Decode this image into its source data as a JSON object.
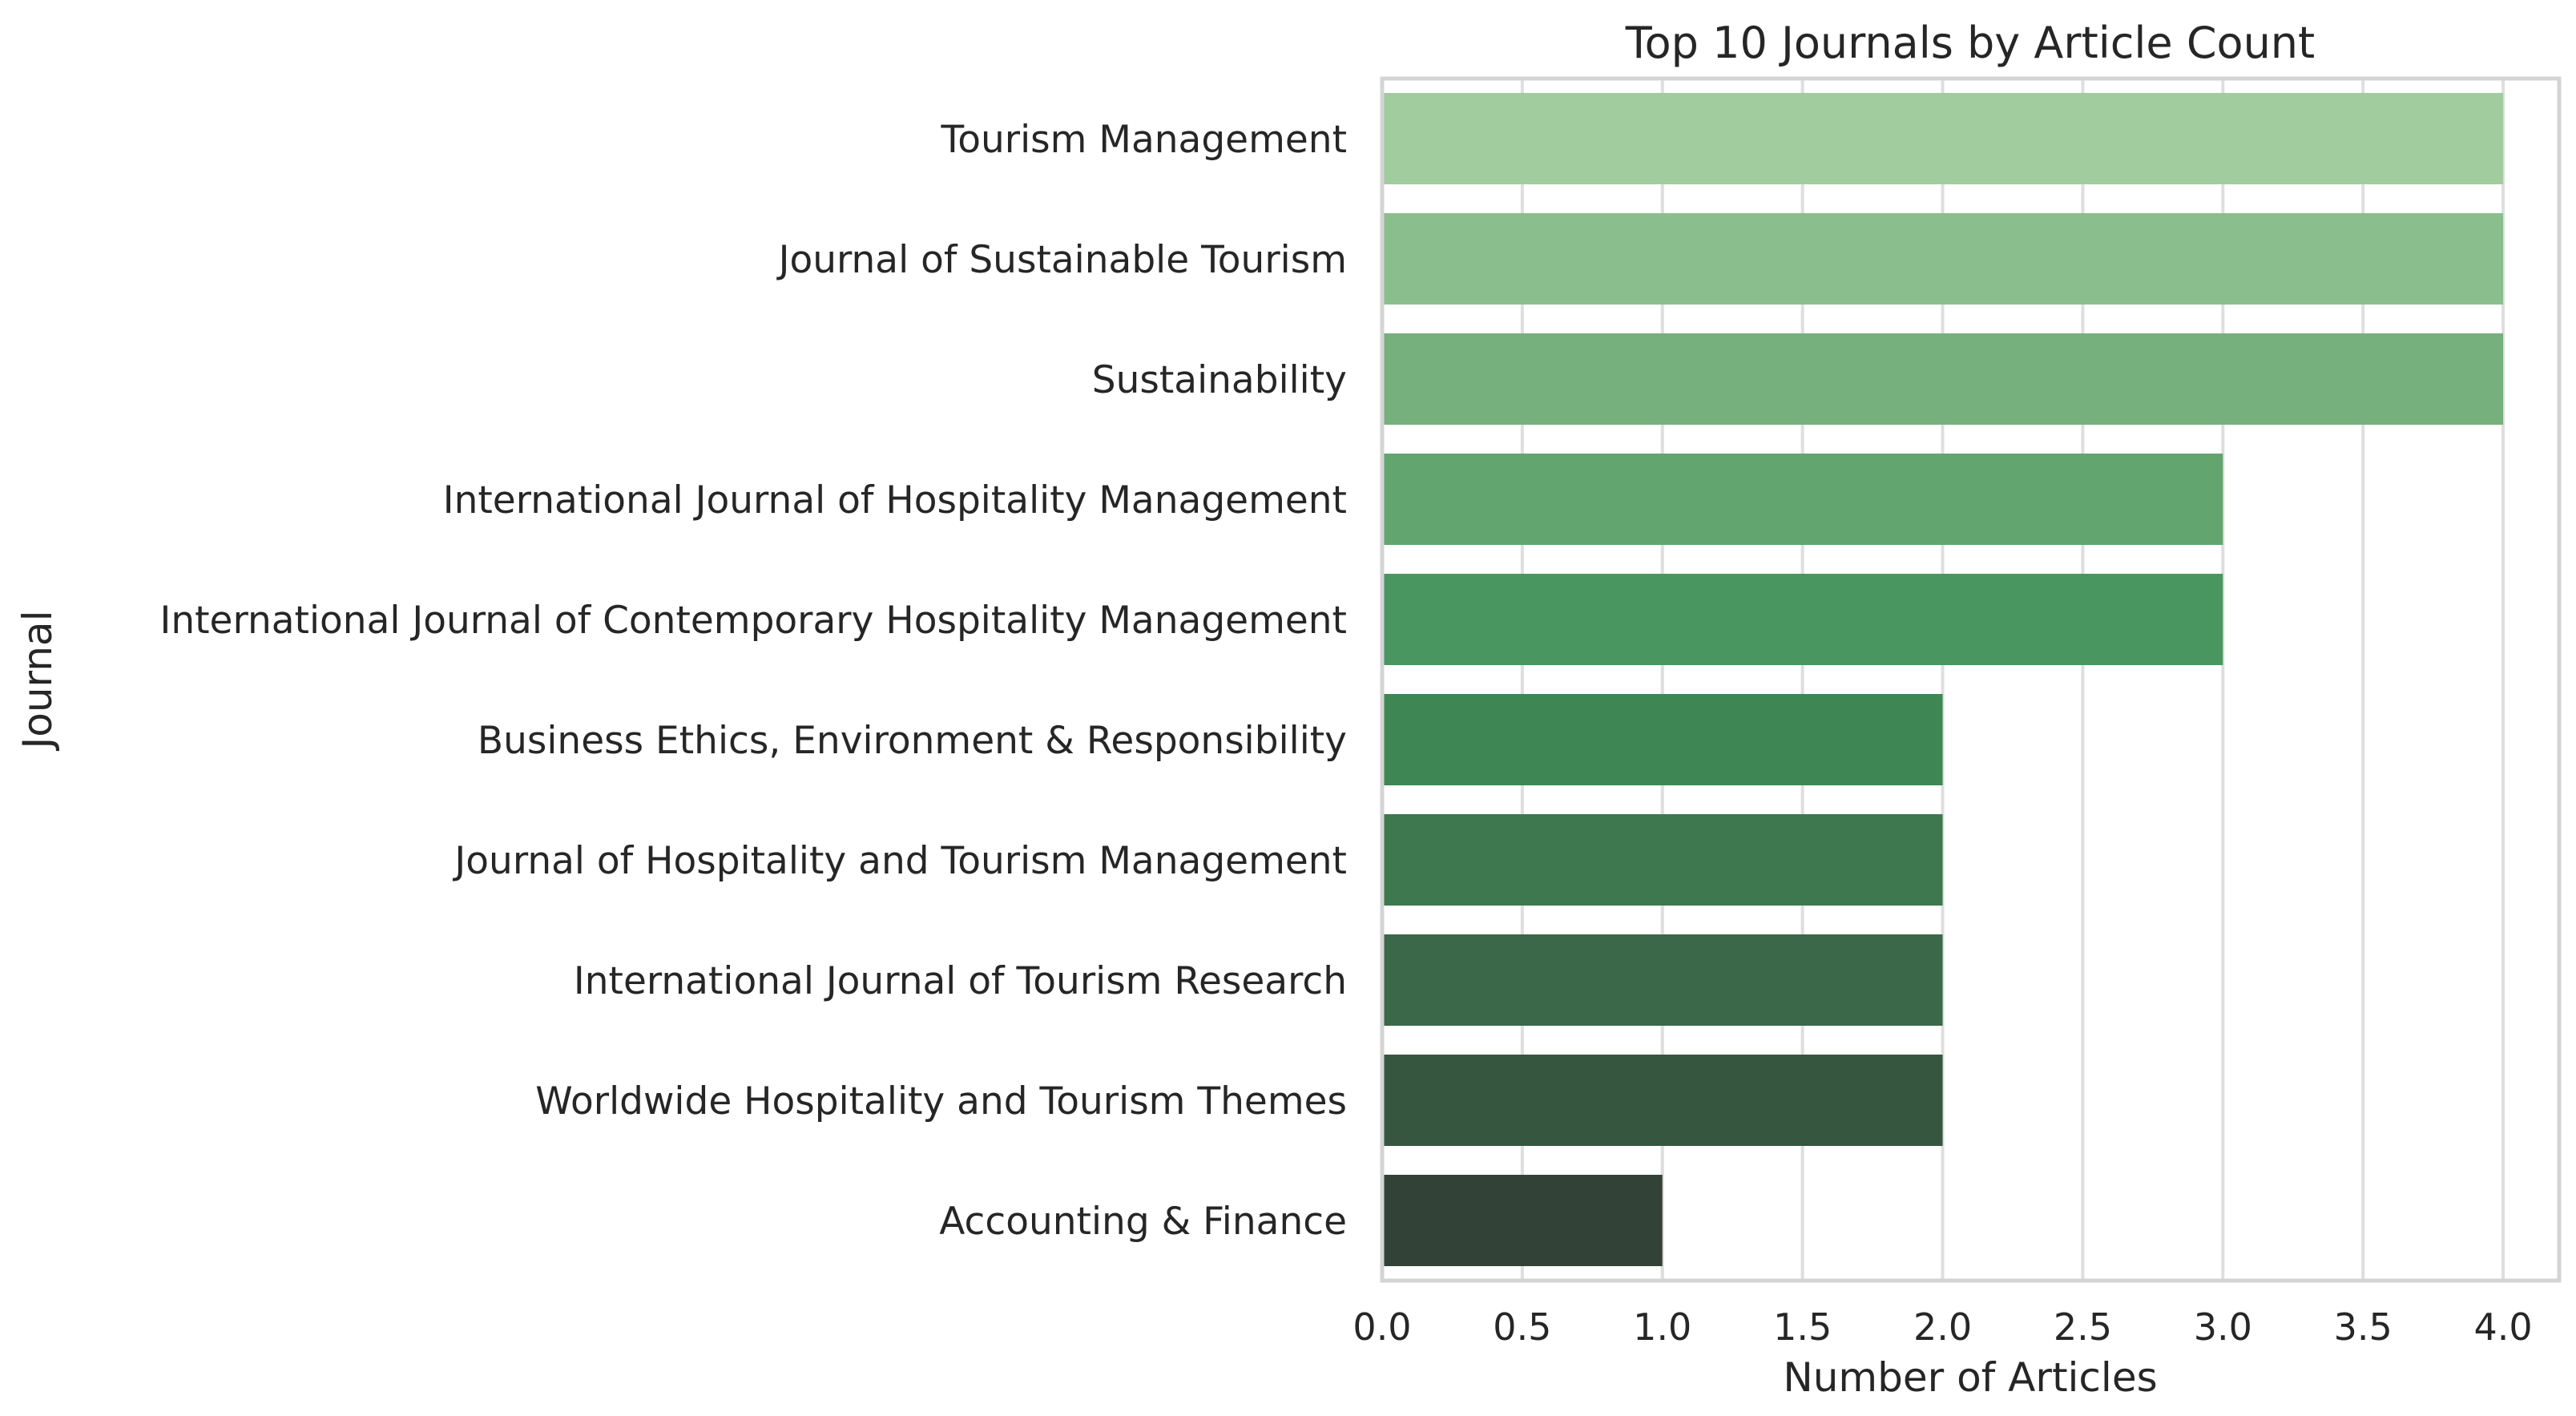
{
  "chart_data": {
    "type": "bar",
    "orientation": "horizontal",
    "title": "Top 10 Journals by Article Count",
    "xlabel": "Number of Articles",
    "ylabel": "Journal",
    "categories": [
      "Tourism Management",
      "Journal of Sustainable Tourism",
      "Sustainability",
      "International Journal of Hospitality Management",
      "International Journal of Contemporary Hospitality Management",
      "Business Ethics, Environment & Responsibility",
      "Journal of Hospitality and Tourism Management",
      "International Journal of Tourism Research",
      "Worldwide Hospitality and Tourism Themes",
      "Accounting & Finance"
    ],
    "values": [
      4,
      4,
      4,
      3,
      3,
      2,
      2,
      2,
      2,
      1
    ],
    "colors": [
      "#a1cc9d",
      "#8bbe8d",
      "#76b07d",
      "#62a56e",
      "#4a9660",
      "#3e8754",
      "#3d784f",
      "#3a6849",
      "#365640",
      "#334237"
    ],
    "xlim": [
      0,
      4.2
    ],
    "xticks": [
      "0.0",
      "0.5",
      "1.0",
      "1.5",
      "2.0",
      "2.5",
      "3.0",
      "3.5",
      "4.0"
    ],
    "grid": true,
    "legend": "none"
  }
}
